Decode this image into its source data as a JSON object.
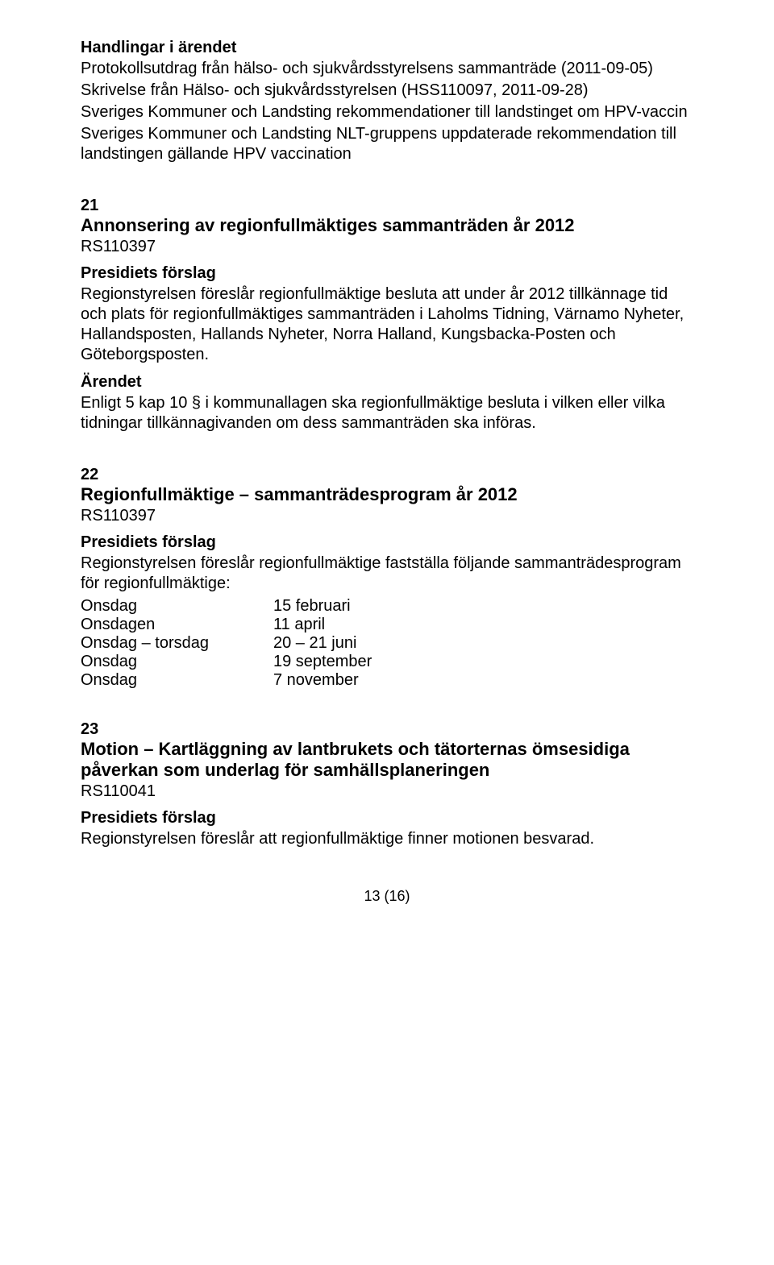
{
  "handlingar": {
    "heading": "Handlingar i ärendet",
    "lines": [
      "Protokollsutdrag från hälso- och sjukvårdsstyrelsens sammanträde (2011-09-05)",
      "Skrivelse från Hälso- och sjukvårdsstyrelsen (HSS110097, 2011-09-28)",
      "Sveriges Kommuner och Landsting rekommendationer till landstinget om HPV-vaccin",
      "Sveriges Kommuner och Landsting NLT-gruppens uppdaterade rekommendation till landstingen gällande HPV vaccination"
    ]
  },
  "item21": {
    "num": "21",
    "title": "Annonsering av regionfullmäktiges sammanträden år 2012",
    "code": "RS110397",
    "presidiets_heading": "Presidiets förslag",
    "presidiets_body": "Regionstyrelsen föreslår regionfullmäktige besluta att under år 2012 tillkännage tid och plats för regionfullmäktiges sammanträden i Laholms Tidning, Värnamo Nyheter, Hallandsposten, Hallands Nyheter, Norra Halland, Kungsbacka-Posten och Göteborgsposten.",
    "arendet_heading": "Ärendet",
    "arendet_body": "Enligt 5 kap 10 § i kommunallagen ska regionfullmäktige besluta i vilken eller vilka tidningar tillkännagivanden om dess sammanträden ska införas."
  },
  "item22": {
    "num": "22",
    "title": "Regionfullmäktige – sammanträdesprogram år 2012",
    "code": "RS110397",
    "presidiets_heading": "Presidiets förslag",
    "presidiets_body": "Regionstyrelsen föreslår regionfullmäktige fastställa följande sammanträdesprogram för regionfullmäktige:",
    "schedule": [
      {
        "left": "Onsdag",
        "right": "15 februari"
      },
      {
        "left": "Onsdagen",
        "right": "11 april"
      },
      {
        "left": "Onsdag – torsdag",
        "right": "20 – 21 juni"
      },
      {
        "left": "Onsdag",
        "right": "19 september"
      },
      {
        "left": "Onsdag",
        "right": "7 november"
      }
    ]
  },
  "item23": {
    "num": "23",
    "title": "Motion – Kartläggning av lantbrukets och tätorternas ömsesidiga påverkan som underlag för samhällsplaneringen",
    "code": "RS110041",
    "presidiets_heading": "Presidiets förslag",
    "presidiets_body": "Regionstyrelsen föreslår att regionfullmäktige finner motionen besvarad."
  },
  "page_number": "13 (16)"
}
